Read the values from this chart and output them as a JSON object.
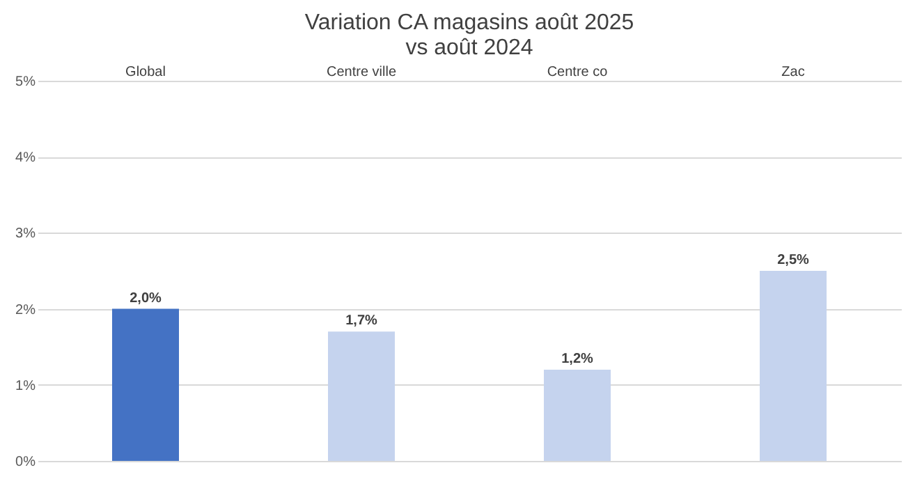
{
  "chart_data": {
    "type": "bar",
    "title": "Variation CA magasins août 2025\nvs août 2024",
    "categories": [
      "Global",
      "Centre ville",
      "Centre co",
      "Zac"
    ],
    "values": [
      2.0,
      1.7,
      1.2,
      2.5
    ],
    "colors": [
      "#4472c4",
      "#c5d3ee",
      "#c5d3ee",
      "#c5d3ee"
    ],
    "value_labels": [
      "2,0%",
      "1,7%",
      "1,2%",
      "2,5%"
    ],
    "ylim": [
      0,
      5
    ],
    "yticks": [
      {
        "value": 0,
        "label": "0%"
      },
      {
        "value": 1,
        "label": "1%"
      },
      {
        "value": 2,
        "label": "2%"
      },
      {
        "value": 3,
        "label": "3%"
      },
      {
        "value": 4,
        "label": "4%"
      },
      {
        "value": 5,
        "label": "5%"
      }
    ],
    "grid": "y",
    "legend": false
  }
}
